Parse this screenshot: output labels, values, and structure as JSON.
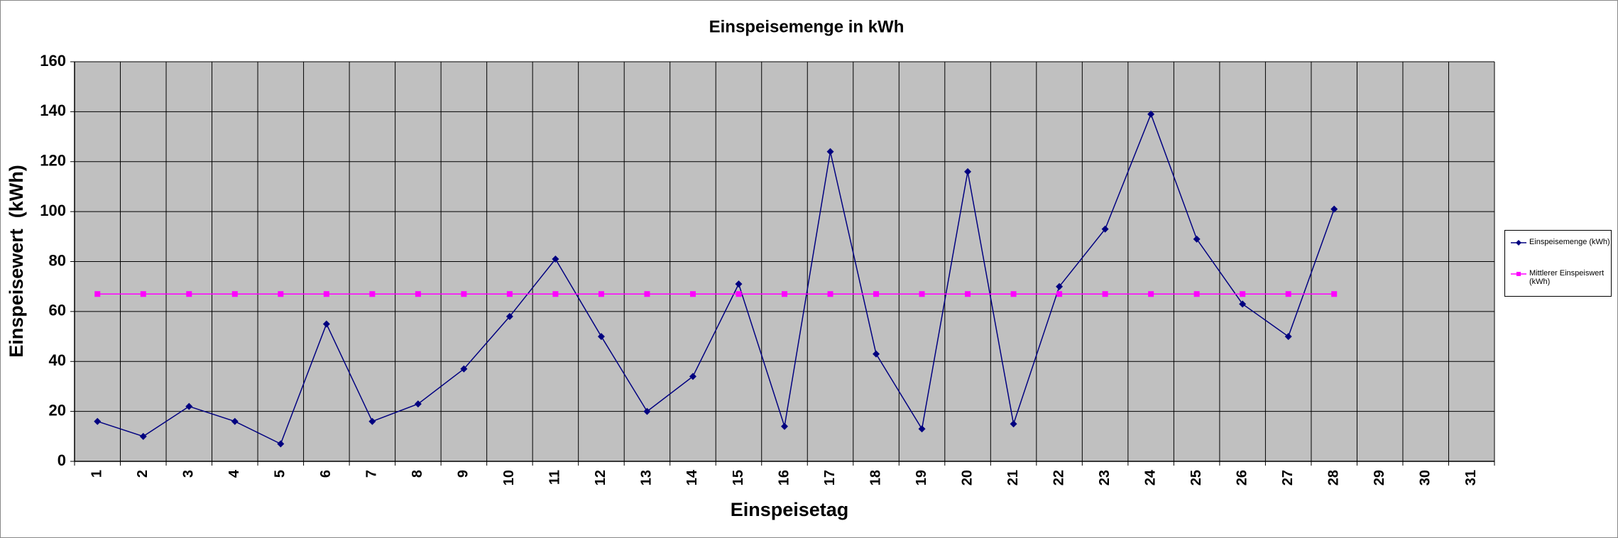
{
  "chart_data": {
    "type": "line",
    "title": "Einspeisemenge in kWh",
    "x_label": "Einspeisetag",
    "y_label": "Einspeisewert  (kWh)",
    "categories": [
      "1",
      "2",
      "3",
      "4",
      "5",
      "6",
      "7",
      "8",
      "9",
      "10",
      "11",
      "12",
      "13",
      "14",
      "15",
      "16",
      "17",
      "18",
      "19",
      "20",
      "21",
      "22",
      "23",
      "24",
      "25",
      "26",
      "27",
      "28",
      "29",
      "30",
      "31"
    ],
    "series": [
      {
        "name": "Einspeisemenge (kWh)",
        "color": "#000080",
        "marker": "diamond",
        "values": [
          16,
          10,
          22,
          16,
          7,
          55,
          16,
          23,
          37,
          58,
          81,
          50,
          20,
          34,
          71,
          14,
          124,
          43,
          13,
          116,
          15,
          70,
          93,
          139,
          89,
          63,
          50,
          101,
          null,
          null,
          null
        ]
      },
      {
        "name": "Mittlerer Einspeiswert (kWh)",
        "color": "#ff00ff",
        "marker": "square",
        "values": [
          67,
          67,
          67,
          67,
          67,
          67,
          67,
          67,
          67,
          67,
          67,
          67,
          67,
          67,
          67,
          67,
          67,
          67,
          67,
          67,
          67,
          67,
          67,
          67,
          67,
          67,
          67,
          67,
          null,
          null,
          null
        ]
      }
    ],
    "ylim": [
      0,
      160
    ],
    "yticks": [
      0,
      20,
      40,
      60,
      80,
      100,
      120,
      140,
      160
    ],
    "grid": true,
    "legend": "right"
  }
}
